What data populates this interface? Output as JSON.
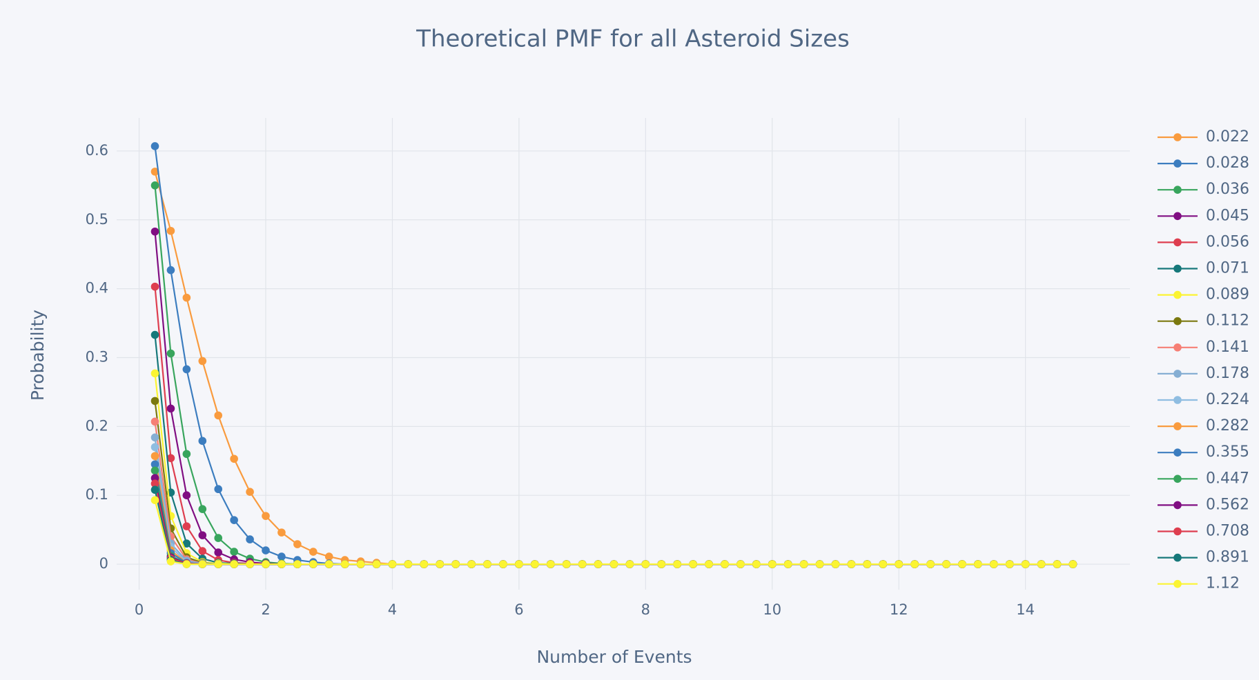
{
  "chart_data": {
    "type": "line",
    "title": "Theoretical PMF for all Asteroid Sizes",
    "x_label": "Number of Events",
    "y_label": "Probability",
    "xlim": [
      -0.355,
      15.65
    ],
    "ylim": [
      -0.037,
      0.648
    ],
    "xticks": [
      0,
      2,
      4,
      6,
      8,
      10,
      12,
      14
    ],
    "yticks": [
      0,
      0.1,
      0.2,
      0.3,
      0.4,
      0.5,
      0.6
    ],
    "grid": true,
    "legend": "right",
    "x": [
      0.25,
      0.5,
      0.75,
      1,
      1.25,
      1.5,
      1.75,
      2,
      2.25,
      2.5,
      2.75,
      3,
      3.25,
      3.5,
      3.75,
      4,
      4.25,
      4.5,
      4.75,
      5,
      5.25,
      5.5,
      5.75,
      6,
      6.25,
      6.5,
      6.75,
      7,
      7.25,
      7.5,
      7.75,
      8,
      8.25,
      8.5,
      8.75,
      9,
      9.25,
      9.5,
      9.75,
      10,
      10.25,
      10.5,
      10.75,
      11,
      11.25,
      11.5,
      11.75,
      12,
      12.25,
      12.5,
      12.75,
      13,
      13.25,
      13.5,
      13.75,
      14,
      14.25,
      14.5,
      14.75
    ],
    "series": [
      {
        "name": "0.022",
        "color": "#f99b3e",
        "values": [
          0.57,
          0.484,
          0.387,
          0.295,
          0.216,
          0.153,
          0.105,
          0.07,
          0.046,
          0.029,
          0.018,
          0.011,
          0.006,
          0.004,
          0.002,
          0,
          0,
          0,
          0,
          0,
          0,
          0,
          0,
          0,
          0,
          0,
          0,
          0,
          0,
          0,
          0,
          0,
          0,
          0,
          0,
          0,
          0,
          0,
          0,
          0,
          0,
          0,
          0,
          0,
          0,
          0,
          0,
          0,
          0,
          0,
          0,
          0,
          0,
          0,
          0,
          0,
          0,
          0,
          0
        ]
      },
      {
        "name": "0.028",
        "color": "#3c7dbf",
        "values": [
          0.607,
          0.427,
          0.283,
          0.179,
          0.109,
          0.064,
          0.036,
          0.02,
          0.011,
          0.006,
          0.003,
          0.001,
          0,
          0,
          0,
          0,
          0,
          0,
          0,
          0,
          0,
          0,
          0,
          0,
          0,
          0,
          0,
          0,
          0,
          0,
          0,
          0,
          0,
          0,
          0,
          0,
          0,
          0,
          0,
          0,
          0,
          0,
          0,
          0,
          0,
          0,
          0,
          0,
          0,
          0,
          0,
          0,
          0,
          0,
          0,
          0,
          0,
          0,
          0
        ]
      },
      {
        "name": "0.036",
        "color": "#38a55d",
        "values": [
          0.55,
          0.306,
          0.16,
          0.08,
          0.038,
          0.018,
          0.008,
          0.003,
          0.001,
          0,
          0,
          0,
          0,
          0,
          0,
          0,
          0,
          0,
          0,
          0,
          0,
          0,
          0,
          0,
          0,
          0,
          0,
          0,
          0,
          0,
          0,
          0,
          0,
          0,
          0,
          0,
          0,
          0,
          0,
          0,
          0,
          0,
          0,
          0,
          0,
          0,
          0,
          0,
          0,
          0,
          0,
          0,
          0,
          0,
          0,
          0,
          0,
          0,
          0
        ]
      },
      {
        "name": "0.045",
        "color": "#800e82",
        "values": [
          0.483,
          0.226,
          0.1,
          0.042,
          0.017,
          0.007,
          0.003,
          0.001,
          0,
          0,
          0,
          0,
          0,
          0,
          0,
          0,
          0,
          0,
          0,
          0,
          0,
          0,
          0,
          0,
          0,
          0,
          0,
          0,
          0,
          0,
          0,
          0,
          0,
          0,
          0,
          0,
          0,
          0,
          0,
          0,
          0,
          0,
          0,
          0,
          0,
          0,
          0,
          0,
          0,
          0,
          0,
          0,
          0,
          0,
          0,
          0,
          0,
          0,
          0
        ]
      },
      {
        "name": "0.056",
        "color": "#de3e4f",
        "values": [
          0.403,
          0.154,
          0.055,
          0.019,
          0.006,
          0.002,
          0.001,
          0,
          0,
          0,
          0,
          0,
          0,
          0,
          0,
          0,
          0,
          0,
          0,
          0,
          0,
          0,
          0,
          0,
          0,
          0,
          0,
          0,
          0,
          0,
          0,
          0,
          0,
          0,
          0,
          0,
          0,
          0,
          0,
          0,
          0,
          0,
          0,
          0,
          0,
          0,
          0,
          0,
          0,
          0,
          0,
          0,
          0,
          0,
          0,
          0,
          0,
          0,
          0
        ]
      },
      {
        "name": "0.071",
        "color": "#16787a",
        "values": [
          0.333,
          0.104,
          0.03,
          0.008,
          0.002,
          0.001,
          0,
          0,
          0,
          0,
          0,
          0,
          0,
          0,
          0,
          0,
          0,
          0,
          0,
          0,
          0,
          0,
          0,
          0,
          0,
          0,
          0,
          0,
          0,
          0,
          0,
          0,
          0,
          0,
          0,
          0,
          0,
          0,
          0,
          0,
          0,
          0,
          0,
          0,
          0,
          0,
          0,
          0,
          0,
          0,
          0,
          0,
          0,
          0,
          0,
          0,
          0,
          0,
          0
        ]
      },
      {
        "name": "0.089",
        "color": "#fbf432",
        "values": [
          0.277,
          0.07,
          0.016,
          0.003,
          0.001,
          0,
          0,
          0,
          0,
          0,
          0,
          0,
          0,
          0,
          0,
          0,
          0,
          0,
          0,
          0,
          0,
          0,
          0,
          0,
          0,
          0,
          0,
          0,
          0,
          0,
          0,
          0,
          0,
          0,
          0,
          0,
          0,
          0,
          0,
          0,
          0,
          0,
          0,
          0,
          0,
          0,
          0,
          0,
          0,
          0,
          0,
          0,
          0,
          0,
          0,
          0,
          0,
          0,
          0
        ]
      },
      {
        "name": "0.112",
        "color": "#7b790f",
        "values": [
          0.237,
          0.052,
          0.01,
          0.002,
          0,
          0,
          0,
          0,
          0,
          0,
          0,
          0,
          0,
          0,
          0,
          0,
          0,
          0,
          0,
          0,
          0,
          0,
          0,
          0,
          0,
          0,
          0,
          0,
          0,
          0,
          0,
          0,
          0,
          0,
          0,
          0,
          0,
          0,
          0,
          0,
          0,
          0,
          0,
          0,
          0,
          0,
          0,
          0,
          0,
          0,
          0,
          0,
          0,
          0,
          0,
          0,
          0,
          0,
          0
        ]
      },
      {
        "name": "0.141",
        "color": "#f67f75",
        "values": [
          0.207,
          0.04,
          0.007,
          0.001,
          0,
          0,
          0,
          0,
          0,
          0,
          0,
          0,
          0,
          0,
          0,
          0,
          0,
          0,
          0,
          0,
          0,
          0,
          0,
          0,
          0,
          0,
          0,
          0,
          0,
          0,
          0,
          0,
          0,
          0,
          0,
          0,
          0,
          0,
          0,
          0,
          0,
          0,
          0,
          0,
          0,
          0,
          0,
          0,
          0,
          0,
          0,
          0,
          0,
          0,
          0,
          0,
          0,
          0,
          0
        ]
      },
      {
        "name": "0.178",
        "color": "#85aed3",
        "values": [
          0.184,
          0.03,
          0.005,
          0.001,
          0,
          0,
          0,
          0,
          0,
          0,
          0,
          0,
          0,
          0,
          0,
          0,
          0,
          0,
          0,
          0,
          0,
          0,
          0,
          0,
          0,
          0,
          0,
          0,
          0,
          0,
          0,
          0,
          0,
          0,
          0,
          0,
          0,
          0,
          0,
          0,
          0,
          0,
          0,
          0,
          0,
          0,
          0,
          0,
          0,
          0,
          0,
          0,
          0,
          0,
          0,
          0,
          0,
          0,
          0
        ]
      },
      {
        "name": "0.224",
        "color": "#8fbde1",
        "values": [
          0.17,
          0.025,
          0.003,
          0,
          0,
          0,
          0,
          0,
          0,
          0,
          0,
          0,
          0,
          0,
          0,
          0,
          0,
          0,
          0,
          0,
          0,
          0,
          0,
          0,
          0,
          0,
          0,
          0,
          0,
          0,
          0,
          0,
          0,
          0,
          0,
          0,
          0,
          0,
          0,
          0,
          0,
          0,
          0,
          0,
          0,
          0,
          0,
          0,
          0,
          0,
          0,
          0,
          0,
          0,
          0,
          0,
          0,
          0,
          0
        ]
      },
      {
        "name": "0.282",
        "color": "#f99b3e",
        "values": [
          0.157,
          0.02,
          0.002,
          0,
          0,
          0,
          0,
          0,
          0,
          0,
          0,
          0,
          0,
          0,
          0,
          0,
          0,
          0,
          0,
          0,
          0,
          0,
          0,
          0,
          0,
          0,
          0,
          0,
          0,
          0,
          0,
          0,
          0,
          0,
          0,
          0,
          0,
          0,
          0,
          0,
          0,
          0,
          0,
          0,
          0,
          0,
          0,
          0,
          0,
          0,
          0,
          0,
          0,
          0,
          0,
          0,
          0,
          0,
          0
        ]
      },
      {
        "name": "0.355",
        "color": "#3c7dbf",
        "values": [
          0.145,
          0.016,
          0.002,
          0,
          0,
          0,
          0,
          0,
          0,
          0,
          0,
          0,
          0,
          0,
          0,
          0,
          0,
          0,
          0,
          0,
          0,
          0,
          0,
          0,
          0,
          0,
          0,
          0,
          0,
          0,
          0,
          0,
          0,
          0,
          0,
          0,
          0,
          0,
          0,
          0,
          0,
          0,
          0,
          0,
          0,
          0,
          0,
          0,
          0,
          0,
          0,
          0,
          0,
          0,
          0,
          0,
          0,
          0,
          0
        ]
      },
      {
        "name": "0.447",
        "color": "#38a55d",
        "values": [
          0.136,
          0.012,
          0.001,
          0,
          0,
          0,
          0,
          0,
          0,
          0,
          0,
          0,
          0,
          0,
          0,
          0,
          0,
          0,
          0,
          0,
          0,
          0,
          0,
          0,
          0,
          0,
          0,
          0,
          0,
          0,
          0,
          0,
          0,
          0,
          0,
          0,
          0,
          0,
          0,
          0,
          0,
          0,
          0,
          0,
          0,
          0,
          0,
          0,
          0,
          0,
          0,
          0,
          0,
          0,
          0,
          0,
          0,
          0,
          0
        ]
      },
      {
        "name": "0.562",
        "color": "#800e82",
        "values": [
          0.125,
          0.01,
          0.001,
          0,
          0,
          0,
          0,
          0,
          0,
          0,
          0,
          0,
          0,
          0,
          0,
          0,
          0,
          0,
          0,
          0,
          0,
          0,
          0,
          0,
          0,
          0,
          0,
          0,
          0,
          0,
          0,
          0,
          0,
          0,
          0,
          0,
          0,
          0,
          0,
          0,
          0,
          0,
          0,
          0,
          0,
          0,
          0,
          0,
          0,
          0,
          0,
          0,
          0,
          0,
          0,
          0,
          0,
          0,
          0
        ]
      },
      {
        "name": "0.708",
        "color": "#de3e4f",
        "values": [
          0.117,
          0.008,
          0.001,
          0,
          0,
          0,
          0,
          0,
          0,
          0,
          0,
          0,
          0,
          0,
          0,
          0,
          0,
          0,
          0,
          0,
          0,
          0,
          0,
          0,
          0,
          0,
          0,
          0,
          0,
          0,
          0,
          0,
          0,
          0,
          0,
          0,
          0,
          0,
          0,
          0,
          0,
          0,
          0,
          0,
          0,
          0,
          0,
          0,
          0,
          0,
          0,
          0,
          0,
          0,
          0,
          0,
          0,
          0,
          0
        ]
      },
      {
        "name": "0.891",
        "color": "#16787a",
        "values": [
          0.108,
          0.006,
          0,
          0,
          0,
          0,
          0,
          0,
          0,
          0,
          0,
          0,
          0,
          0,
          0,
          0,
          0,
          0,
          0,
          0,
          0,
          0,
          0,
          0,
          0,
          0,
          0,
          0,
          0,
          0,
          0,
          0,
          0,
          0,
          0,
          0,
          0,
          0,
          0,
          0,
          0,
          0,
          0,
          0,
          0,
          0,
          0,
          0,
          0,
          0,
          0,
          0,
          0,
          0,
          0,
          0,
          0,
          0,
          0
        ]
      },
      {
        "name": "1.12",
        "color": "#fbf432",
        "values": [
          0.093,
          0.004,
          0,
          0,
          0,
          0,
          0,
          0,
          0,
          0,
          0,
          0,
          0,
          0,
          0,
          0,
          0,
          0,
          0,
          0,
          0,
          0,
          0,
          0,
          0,
          0,
          0,
          0,
          0,
          0,
          0,
          0,
          0,
          0,
          0,
          0,
          0,
          0,
          0,
          0,
          0,
          0,
          0,
          0,
          0,
          0,
          0,
          0,
          0,
          0,
          0,
          0,
          0,
          0,
          0,
          0,
          0,
          0,
          0
        ]
      }
    ]
  }
}
